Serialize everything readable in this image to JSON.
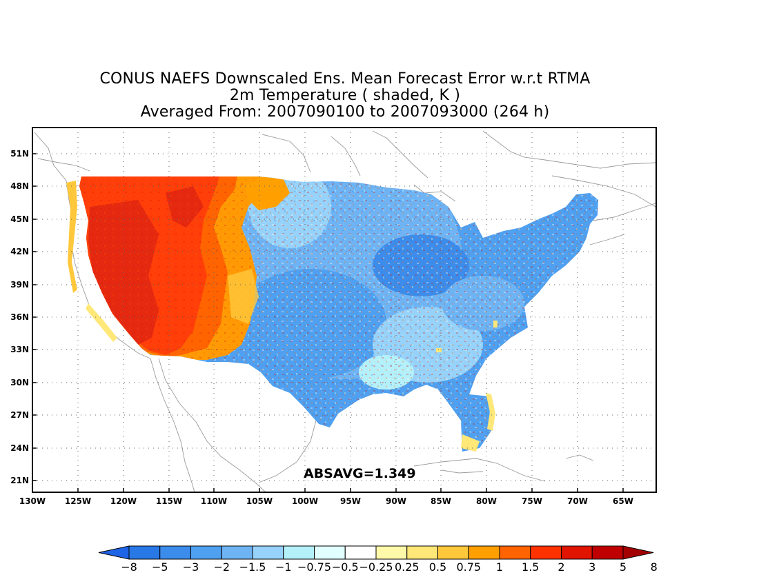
{
  "title": {
    "line1": "CONUS NAEFS Downscaled Ens. Mean Forecast Error w.r.t RTMA",
    "line2": "2m Temperature ( shaded, K )",
    "line3": "Averaged From: 2007090100 to 2007093000 (264 h)"
  },
  "annotation": "ABSAVG=1.349",
  "lat_labels": [
    "51N",
    "48N",
    "45N",
    "42N",
    "39N",
    "36N",
    "33N",
    "30N",
    "27N",
    "24N",
    "21N"
  ],
  "lon_labels": [
    "130W",
    "125W",
    "120W",
    "115W",
    "110W",
    "105W",
    "100W",
    "95W",
    "90W",
    "85W",
    "80W",
    "75W",
    "70W",
    "65W"
  ],
  "colorbar": {
    "labels": [
      "−8",
      "−5",
      "−3",
      "−2",
      "−1.5",
      "−1",
      "−0.75",
      "−0.5",
      "−0.25",
      "0.25",
      "0.5",
      "0.75",
      "1",
      "1.5",
      "2",
      "3",
      "5",
      "8"
    ],
    "colors": [
      "#1e64e6",
      "#2878e6",
      "#3c8ceb",
      "#4fa0f0",
      "#6eb4f5",
      "#96d2fa",
      "#b4f0fa",
      "#e1ffff",
      "#ffffff",
      "#fffaaa",
      "#ffe778",
      "#ffc83c",
      "#ffa000",
      "#ff6400",
      "#ff3200",
      "#e11400",
      "#c00000",
      "#a50000"
    ]
  },
  "regions": {
    "west": "#ff3e0a",
    "west_dark": "#e52810",
    "northwest_transition": "#ff9a05",
    "plains": "#6eb4f5",
    "east": "#4fa0f0",
    "core": "#3c8ceb",
    "coast": "#ffe778"
  }
}
